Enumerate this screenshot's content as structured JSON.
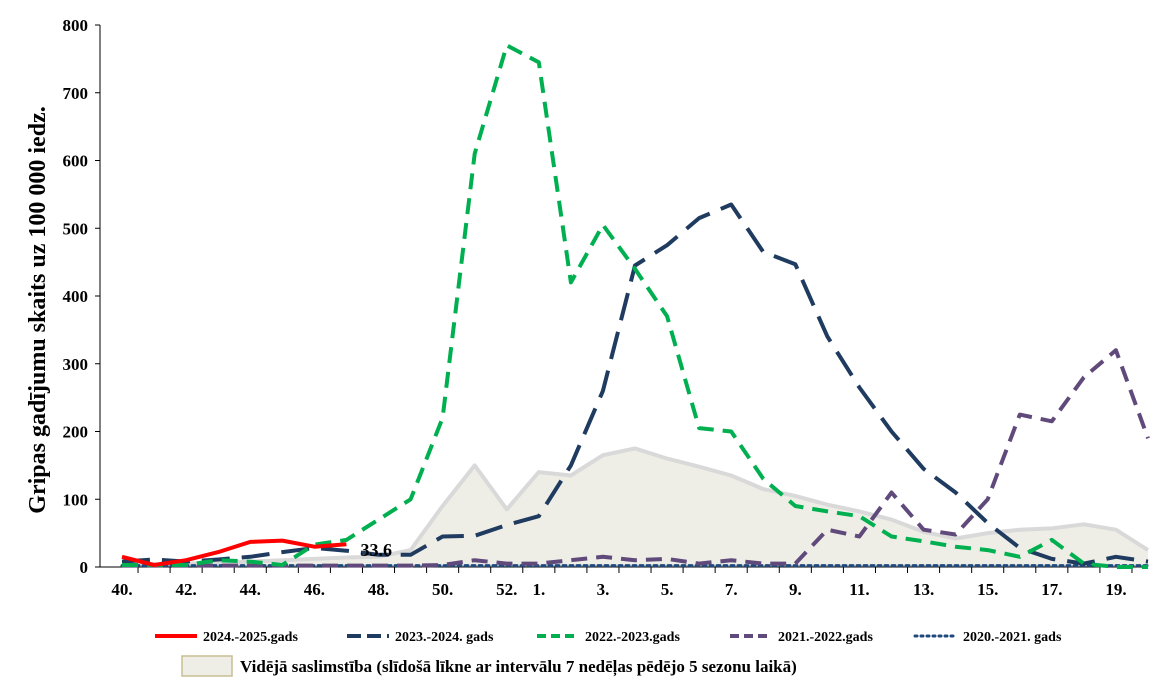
{
  "chart_data": {
    "type": "line",
    "title": "",
    "xlabel": "",
    "ylabel": "Gripas gadījumu skaits uz 100 000 iedz.",
    "ylim": [
      0,
      800
    ],
    "yticks": [
      "0",
      "100",
      "200",
      "300",
      "400",
      "500",
      "600",
      "700",
      "800"
    ],
    "x": [
      "40.",
      "41.",
      "42.",
      "43.",
      "44.",
      "45.",
      "46.",
      "47.",
      "48.",
      "49.",
      "50.",
      "51.",
      "52.",
      "1.",
      "2.",
      "3.",
      "4.",
      "5.",
      "6.",
      "7.",
      "8.",
      "9.",
      "10.",
      "11.",
      "12.",
      "13.",
      "14.",
      "15.",
      "16.",
      "17.",
      "18.",
      "19.",
      "20."
    ],
    "xtick_labels": [
      "40.",
      "",
      "42.",
      "",
      "44.",
      "",
      "46.",
      "",
      "48.",
      "",
      "50.",
      "",
      "52.",
      "1.",
      "",
      "3.",
      "",
      "5.",
      "",
      "7.",
      "",
      "9.",
      "",
      "11.",
      "",
      "13.",
      "",
      "15.",
      "",
      "17.",
      "",
      "19.",
      ""
    ],
    "grid": false,
    "legend_position": "bottom",
    "area": {
      "name": "Vidējā saslimstība (slīdošā līkne ar intervālu 7 nedēļas pēdējo 5 sezonu laikā)",
      "color": "#efeee6",
      "edge_color": "#d9d9d9",
      "values": [
        5,
        4,
        5,
        6,
        8,
        10,
        12,
        14,
        15,
        25,
        90,
        150,
        85,
        140,
        135,
        165,
        175,
        160,
        148,
        135,
        115,
        105,
        92,
        82,
        70,
        52,
        42,
        50,
        55,
        57,
        63,
        55,
        25
      ]
    },
    "series": [
      {
        "name": "2024.-2025.gads",
        "color": "#ff0000",
        "dash": "solid",
        "values": [
          15,
          3,
          10,
          22,
          37,
          39,
          30,
          33.6,
          null,
          null,
          null,
          null,
          null,
          null,
          null,
          null,
          null,
          null,
          null,
          null,
          null,
          null,
          null,
          null,
          null,
          null,
          null,
          null,
          null,
          null,
          null,
          null,
          null
        ]
      },
      {
        "name": "2023.-2024. gads",
        "color": "#1f3b60",
        "dash": "longdash",
        "values": [
          8,
          11,
          8,
          11,
          15,
          22,
          28,
          24,
          18,
          18,
          45,
          46,
          62,
          75,
          150,
          260,
          445,
          475,
          515,
          535,
          465,
          447,
          340,
          265,
          200,
          145,
          110,
          65,
          28,
          12,
          5,
          15,
          8
        ]
      },
      {
        "name": "2022.-2023.gads",
        "color": "#00b050",
        "dash": "dash",
        "values": [
          3,
          3,
          3,
          10,
          8,
          3,
          33,
          40,
          70,
          100,
          220,
          610,
          770,
          745,
          420,
          505,
          440,
          370,
          205,
          200,
          130,
          90,
          82,
          75,
          45,
          38,
          30,
          25,
          15,
          40,
          5,
          0,
          0
        ]
      },
      {
        "name": "2021.-2022.gads",
        "color": "#604a7b",
        "dash": "dash",
        "values": [
          2,
          2,
          2,
          2,
          2,
          2,
          2,
          2,
          2,
          2,
          3,
          10,
          5,
          5,
          10,
          15,
          10,
          12,
          5,
          10,
          5,
          5,
          55,
          45,
          110,
          55,
          48,
          100,
          225,
          215,
          280,
          320,
          190
        ]
      },
      {
        "name": "2020.-2021. gads",
        "color": "#1f497d",
        "dash": "dot",
        "values": [
          2,
          2,
          2,
          2,
          2,
          2,
          2,
          2,
          2,
          2,
          2,
          2,
          2,
          2,
          2,
          2,
          2,
          2,
          2,
          2,
          2,
          2,
          2,
          2,
          2,
          2,
          2,
          2,
          2,
          2,
          2,
          2,
          2
        ]
      }
    ],
    "annotations": [
      {
        "text": "33.6",
        "x": "47.",
        "y": 33.6
      }
    ]
  }
}
